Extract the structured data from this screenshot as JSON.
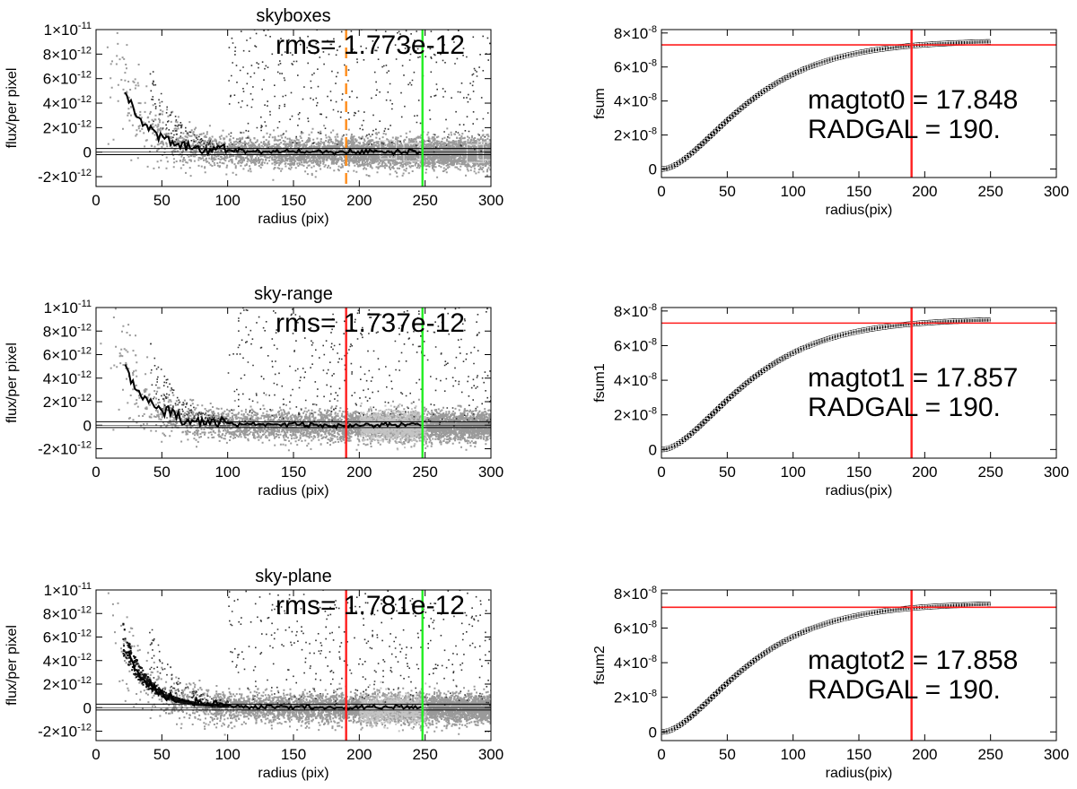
{
  "colors": {
    "red": "#ff1e1e",
    "green": "#22ee22",
    "orange": "#ff8c1a",
    "scatter_gray": "#9a9a9a",
    "scatter_light": "#c4c4c4",
    "black": "#000000"
  },
  "chart_data": [
    {
      "id": "p0",
      "type": "scatter",
      "title": "skyboxes",
      "xlabel": "radius (pix)",
      "ylabel": "flux/per pixel",
      "xlim": [
        0,
        300
      ],
      "ylim": [
        -2.8e-12,
        1e-11
      ],
      "xticks": [
        0,
        50,
        100,
        150,
        200,
        250,
        300
      ],
      "yticks": [
        {
          "v": 1e-11,
          "m": "1×10",
          "e": "-11"
        },
        {
          "v": 8e-12,
          "m": "8×10",
          "e": "-12"
        },
        {
          "v": 6e-12,
          "m": "6×10",
          "e": "-12"
        },
        {
          "v": 4e-12,
          "m": "4×10",
          "e": "-12"
        },
        {
          "v": 2e-12,
          "m": "2×10",
          "e": "-12"
        },
        {
          "v": 0,
          "m": "0",
          "e": ""
        },
        {
          "v": -2e-12,
          "m": "-2×10",
          "e": "-12"
        }
      ],
      "annotations": [
        "rms= 1.773e-12"
      ],
      "vlines": [
        {
          "x": 190,
          "color": "orange",
          "dashed": true
        },
        {
          "x": 248,
          "color": "green",
          "dashed": false
        }
      ],
      "variant": "boxes"
    },
    {
      "id": "p1",
      "type": "line",
      "title": "",
      "xlabel": "radius(pix)",
      "ylabel": "fsum",
      "xlim": [
        0,
        300
      ],
      "ylim": [
        -5e-09,
        8.2e-08
      ],
      "xticks": [
        0,
        50,
        100,
        150,
        200,
        250,
        300
      ],
      "yticks": [
        {
          "v": 8e-08,
          "m": "8×10",
          "e": "-8"
        },
        {
          "v": 6e-08,
          "m": "6×10",
          "e": "-8"
        },
        {
          "v": 4e-08,
          "m": "4×10",
          "e": "-8"
        },
        {
          "v": 2e-08,
          "m": "2×10",
          "e": "-8"
        },
        {
          "v": 0,
          "m": "0",
          "e": ""
        }
      ],
      "annotations": [
        "magtot0 =  17.848",
        "RADGAL =    190."
      ],
      "vlines": [
        {
          "x": 190,
          "color": "red",
          "dashed": false
        }
      ],
      "hline": 7.3e-08,
      "curve_max_x": 250
    },
    {
      "id": "p2",
      "type": "scatter",
      "title": "sky-range",
      "xlabel": "radius (pix)",
      "ylabel": "flux/per pixel",
      "xlim": [
        0,
        300
      ],
      "ylim": [
        -2.8e-12,
        1e-11
      ],
      "xticks": [
        0,
        50,
        100,
        150,
        200,
        250,
        300
      ],
      "yticks": [
        {
          "v": 1e-11,
          "m": "1×10",
          "e": "-11"
        },
        {
          "v": 8e-12,
          "m": "8×10",
          "e": "-12"
        },
        {
          "v": 6e-12,
          "m": "6×10",
          "e": "-12"
        },
        {
          "v": 4e-12,
          "m": "4×10",
          "e": "-12"
        },
        {
          "v": 2e-12,
          "m": "2×10",
          "e": "-12"
        },
        {
          "v": 0,
          "m": "0",
          "e": ""
        },
        {
          "v": -2e-12,
          "m": "-2×10",
          "e": "-12"
        }
      ],
      "annotations": [
        "rms= 1.737e-12"
      ],
      "vlines": [
        {
          "x": 190,
          "color": "red",
          "dashed": false
        },
        {
          "x": 248,
          "color": "green",
          "dashed": false
        }
      ],
      "variant": "range"
    },
    {
      "id": "p3",
      "type": "line",
      "title": "",
      "xlabel": "radius(pix)",
      "ylabel": "fsum1",
      "xlim": [
        0,
        300
      ],
      "ylim": [
        -5e-09,
        8.2e-08
      ],
      "xticks": [
        0,
        50,
        100,
        150,
        200,
        250,
        300
      ],
      "yticks": [
        {
          "v": 8e-08,
          "m": "8×10",
          "e": "-8"
        },
        {
          "v": 6e-08,
          "m": "6×10",
          "e": "-8"
        },
        {
          "v": 4e-08,
          "m": "4×10",
          "e": "-8"
        },
        {
          "v": 2e-08,
          "m": "2×10",
          "e": "-8"
        },
        {
          "v": 0,
          "m": "0",
          "e": ""
        }
      ],
      "annotations": [
        "magtot1 =  17.857",
        "RADGAL =    190."
      ],
      "vlines": [
        {
          "x": 190,
          "color": "red",
          "dashed": false
        }
      ],
      "hline": 7.3e-08,
      "curve_max_x": 250
    },
    {
      "id": "p4",
      "type": "scatter",
      "title": "sky-plane",
      "xlabel": "radius (pix)",
      "ylabel": "flux/per pixel",
      "xlim": [
        0,
        300
      ],
      "ylim": [
        -2.8e-12,
        1e-11
      ],
      "xticks": [
        0,
        50,
        100,
        150,
        200,
        250,
        300
      ],
      "yticks": [
        {
          "v": 1e-11,
          "m": "1×10",
          "e": "-11"
        },
        {
          "v": 8e-12,
          "m": "8×10",
          "e": "-12"
        },
        {
          "v": 6e-12,
          "m": "6×10",
          "e": "-12"
        },
        {
          "v": 4e-12,
          "m": "4×10",
          "e": "-12"
        },
        {
          "v": 2e-12,
          "m": "2×10",
          "e": "-12"
        },
        {
          "v": 0,
          "m": "0",
          "e": ""
        },
        {
          "v": -2e-12,
          "m": "-2×10",
          "e": "-12"
        }
      ],
      "annotations": [
        "rms= 1.781e-12"
      ],
      "vlines": [
        {
          "x": 190,
          "color": "red",
          "dashed": false
        },
        {
          "x": 248,
          "color": "green",
          "dashed": false
        }
      ],
      "variant": "plane"
    },
    {
      "id": "p5",
      "type": "line",
      "title": "",
      "xlabel": "radius(pix)",
      "ylabel": "fsum2",
      "xlim": [
        0,
        300
      ],
      "ylim": [
        -5e-09,
        8.2e-08
      ],
      "xticks": [
        0,
        50,
        100,
        150,
        200,
        250,
        300
      ],
      "yticks": [
        {
          "v": 8e-08,
          "m": "8×10",
          "e": "-8"
        },
        {
          "v": 6e-08,
          "m": "6×10",
          "e": "-8"
        },
        {
          "v": 4e-08,
          "m": "4×10",
          "e": "-8"
        },
        {
          "v": 2e-08,
          "m": "2×10",
          "e": "-8"
        },
        {
          "v": 0,
          "m": "0",
          "e": ""
        }
      ],
      "annotations": [
        "magtot2 =  17.858",
        "RADGAL =    190."
      ],
      "vlines": [
        {
          "x": 190,
          "color": "red",
          "dashed": false
        }
      ],
      "hline": 7.2e-08,
      "curve_max_x": 250
    }
  ]
}
